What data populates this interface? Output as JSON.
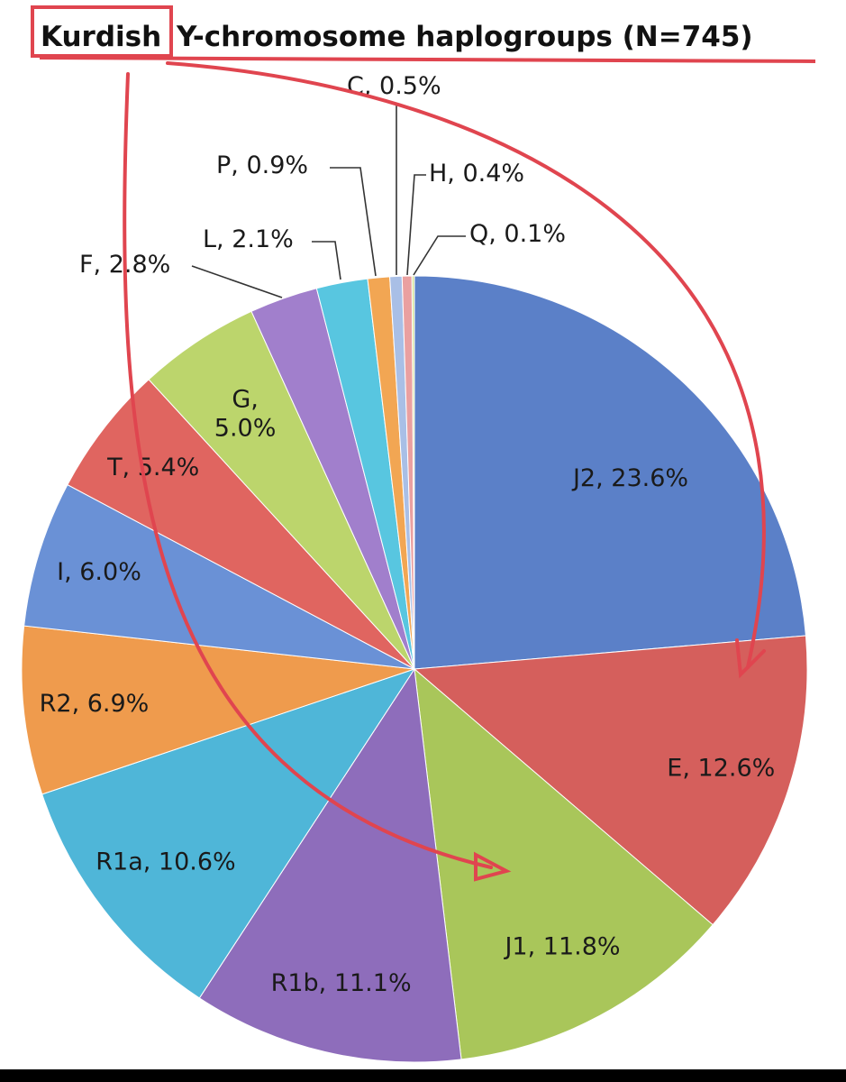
{
  "chart_data": {
    "type": "pie",
    "title_parts": {
      "highlighted": "Kurdish",
      "rest": "Y-chromosome haplogroups (N=745)"
    },
    "start_angle_deg": 0,
    "direction": "clockwise",
    "grid": false,
    "legend": "none",
    "slices": [
      {
        "name": "J2",
        "value": 23.6,
        "label": "J2, 23.6%",
        "color": "#5b80c8"
      },
      {
        "name": "E",
        "value": 12.6,
        "label": "E, 12.6%",
        "color": "#d55f5c"
      },
      {
        "name": "J1",
        "value": 11.8,
        "label": "J1, 11.8%",
        "color": "#a9c65a"
      },
      {
        "name": "R1b",
        "value": 11.1,
        "label": "R1b, 11.1%",
        "color": "#8e6dbb"
      },
      {
        "name": "R1a",
        "value": 10.6,
        "label": "R1a, 10.6%",
        "color": "#4fb6d8"
      },
      {
        "name": "R2",
        "value": 6.9,
        "label": "R2, 6.9%",
        "color": "#ef9b4d"
      },
      {
        "name": "I",
        "value": 6.0,
        "label": "I, 6.0%",
        "color": "#6a91d6"
      },
      {
        "name": "T",
        "value": 5.4,
        "label": "T, 5.4%",
        "color": "#e06560"
      },
      {
        "name": "G",
        "value": 5.0,
        "label": "G,\n5.0%",
        "color": "#bcd56c"
      },
      {
        "name": "F",
        "value": 2.8,
        "label": "F, 2.8%",
        "color": "#a17fcc"
      },
      {
        "name": "L",
        "value": 2.1,
        "label": "L, 2.1%",
        "color": "#58c6e0"
      },
      {
        "name": "P",
        "value": 0.9,
        "label": "P, 0.9%",
        "color": "#f2a653"
      },
      {
        "name": "C",
        "value": 0.5,
        "label": "C, 0.5%",
        "color": "#a9bfe6"
      },
      {
        "name": "H",
        "value": 0.4,
        "label": "H, 0.4%",
        "color": "#eaa0a0"
      },
      {
        "name": "Q",
        "value": 0.1,
        "label": "Q, 0.1%",
        "color": "#d7e49c"
      }
    ]
  },
  "annotation": {
    "color": "#e0454f"
  }
}
